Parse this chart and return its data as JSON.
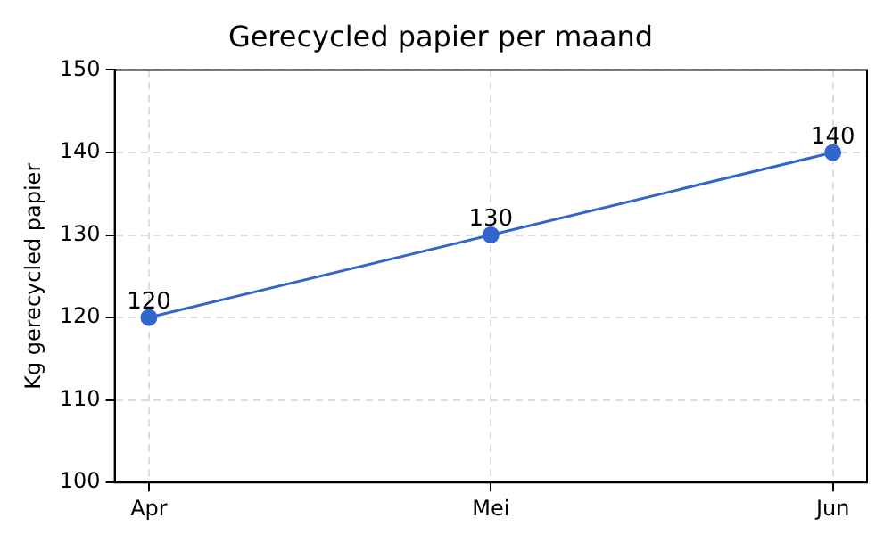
{
  "chart_data": {
    "type": "line",
    "title": "Gerecycled papier per maand",
    "ylabel": "Kg gerecycled papier",
    "categories": [
      "Apr",
      "Mei",
      "Jun"
    ],
    "series": [
      {
        "color": "#3366cc",
        "values": [
          120,
          130,
          140
        ]
      }
    ],
    "ylim": [
      100,
      150
    ],
    "yticks": [
      100,
      110,
      120,
      130,
      140,
      150
    ],
    "grid": true,
    "marker": "circle",
    "line_style": "solid",
    "data_labels": true,
    "legend": false
  }
}
